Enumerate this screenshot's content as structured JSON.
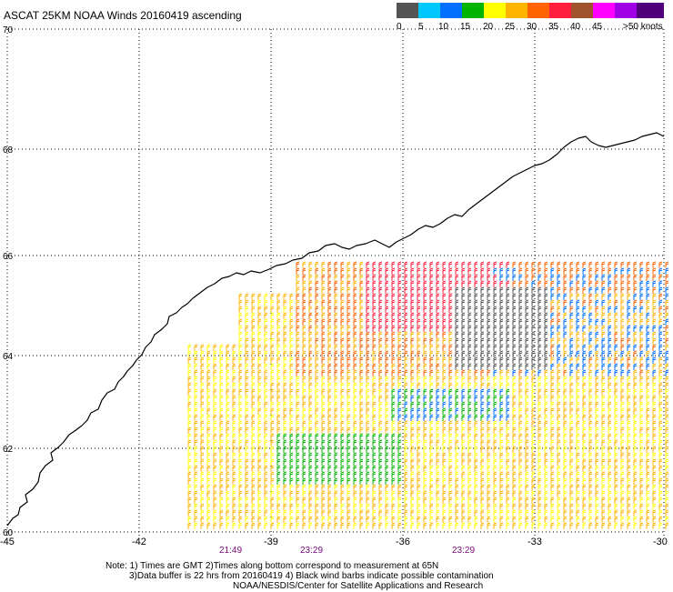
{
  "title": "ASCAT 25KM NOAA Winds 20160419 ascending",
  "scale": {
    "colors": [
      "#545454",
      "#00c8ff",
      "#0070ff",
      "#00b400",
      "#ffff00",
      "#ffb400",
      "#ff6400",
      "#ff1e3c",
      "#a0522d",
      "#ff00ff",
      "#a000e6",
      "#500078"
    ],
    "labels": [
      "0",
      "5",
      "10",
      "15",
      "20",
      "25",
      "30",
      "35",
      "40",
      "45",
      ">50 knots"
    ]
  },
  "axes": {
    "lat_labels": [
      "70",
      "68",
      "66",
      "64",
      "62",
      "60"
    ],
    "lon_labels": [
      "-45",
      "-42",
      "-39",
      "-36",
      "-33",
      "-30"
    ],
    "lat_range": [
      60,
      70
    ],
    "lon_range": [
      -45,
      -30
    ]
  },
  "pass_times": [
    "21:49",
    "23:29",
    "23:29"
  ],
  "notes": [
    "Note: 1) Times are GMT 2)Times along bottom correspond to measurement at 65N",
    "3)Data buffer is 22 hrs from 20160419 4) Black wind barbs indicate possible contamination",
    "NOAA/NESDIS/Center for Satellite Applications and Research"
  ],
  "coastline_color": "#000000",
  "grid_style": "dotted"
}
